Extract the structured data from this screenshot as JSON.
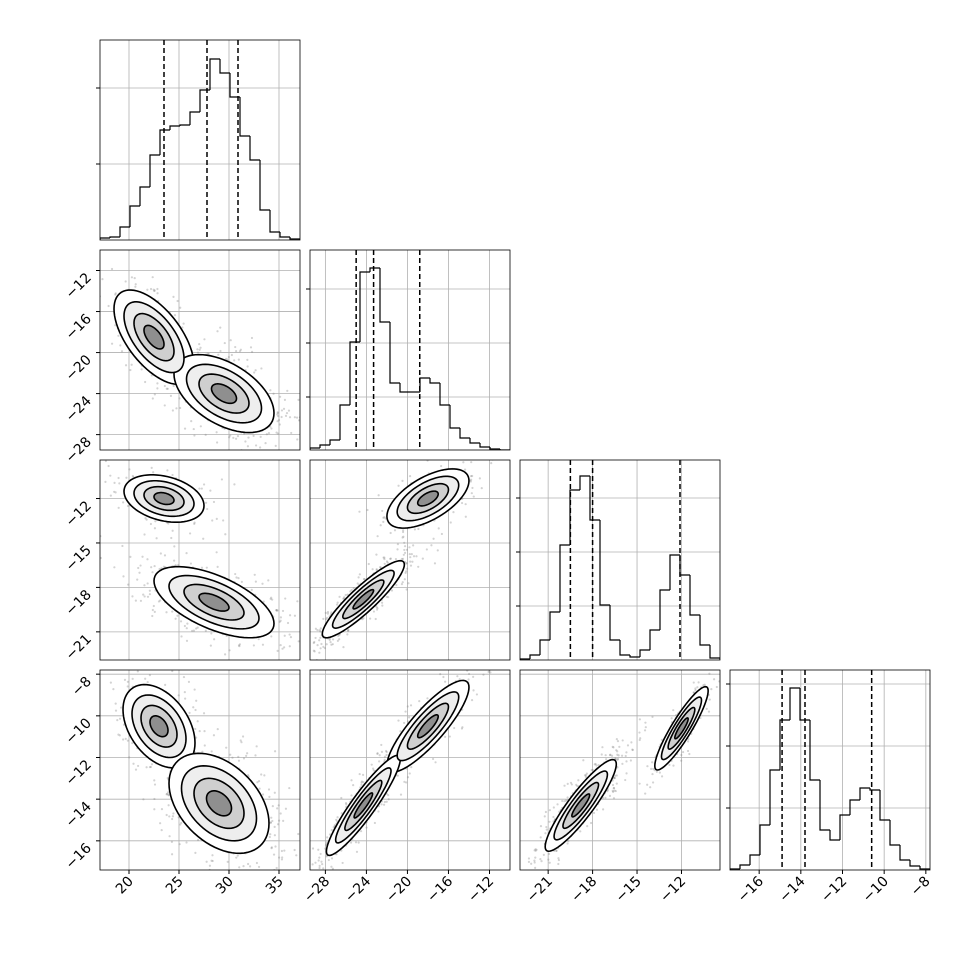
{
  "chart_data": {
    "type": "corner",
    "grid": true,
    "color": "#000000",
    "point_color": "#808080",
    "levels": [
      0.5,
      1,
      1.5,
      2
    ],
    "parameters": [
      {
        "lim": [
          17.1,
          37.1
        ],
        "ticks": [
          20,
          25,
          30,
          35
        ],
        "bins": [
          17.1,
          18.1,
          19.1,
          20.1,
          21.1,
          22.1,
          23.1,
          24.1,
          25.1,
          26.1,
          27.1,
          28.1,
          29.1,
          30.1,
          31.1,
          32.1,
          33.1,
          34.1,
          35.1,
          36.1,
          37.1
        ],
        "counts": [
          2,
          3,
          13,
          34,
          53,
          85,
          110,
          114,
          115,
          128,
          150,
          181,
          167,
          143,
          104,
          80,
          30,
          8,
          3,
          1
        ],
        "hist_ylim": [
          0,
          200
        ],
        "hist_yticks": [
          76,
          152
        ],
        "quantiles": [
          23.5,
          27.8,
          30.9
        ]
      },
      {
        "lim": [
          -29.5,
          -10.0
        ],
        "ticks": [
          {
            "value": -28,
            "label": "−28"
          },
          {
            "value": -24,
            "label": "−24"
          },
          {
            "value": -20,
            "label": "−20"
          },
          {
            "value": -16,
            "label": "−16"
          },
          {
            "value": -12,
            "label": "−12"
          }
        ],
        "bins": [
          -29.5,
          -28.525,
          -27.55,
          -26.575,
          -25.6,
          -24.625,
          -23.65,
          -22.675,
          -21.7,
          -20.725,
          -19.75,
          -18.775,
          -17.8,
          -16.825,
          -15.85,
          -14.875,
          -13.9,
          -12.925,
          -11.95,
          -10.975,
          -10.0
        ],
        "counts": [
          2,
          5,
          10,
          45,
          108,
          178,
          182,
          128,
          67,
          58,
          58,
          72,
          67,
          45,
          22,
          12,
          7,
          3,
          1,
          0
        ],
        "hist_ylim": [
          0,
          200
        ],
        "hist_yticks": [
          53,
          107,
          161
        ],
        "quantiles": [
          -25.0,
          -23.3,
          -18.8
        ]
      },
      {
        "lim": [
          -22.9,
          -9.4
        ],
        "ticks": [
          {
            "value": -21,
            "label": "−21"
          },
          {
            "value": -18,
            "label": "−18"
          },
          {
            "value": -15,
            "label": "−15"
          },
          {
            "value": -12,
            "label": "−12"
          }
        ],
        "bins": [
          -22.9,
          -22.225,
          -21.55,
          -20.875,
          -20.2,
          -19.525,
          -18.85,
          -18.175,
          -17.5,
          -16.825,
          -16.15,
          -15.475,
          -14.8,
          -14.125,
          -13.45,
          -12.775,
          -12.1,
          -11.425,
          -10.75,
          -10.075,
          -9.4
        ],
        "counts": [
          1,
          5,
          20,
          48,
          115,
          170,
          184,
          140,
          55,
          20,
          5,
          3,
          10,
          30,
          70,
          105,
          85,
          45,
          15,
          2
        ],
        "hist_ylim": [
          0,
          200
        ],
        "hist_yticks": [
          54,
          108,
          162
        ],
        "quantiles": [
          -19.5,
          -18.0,
          -12.1
        ]
      },
      {
        "lim": [
          -17.4,
          -7.8
        ],
        "ticks": [
          {
            "value": -16,
            "label": "−16"
          },
          {
            "value": -14,
            "label": "−14"
          },
          {
            "value": -12,
            "label": "−12"
          },
          {
            "value": -10,
            "label": "−10"
          },
          {
            "value": -8,
            "label": "−8"
          }
        ],
        "bins": [
          -17.4,
          -16.92,
          -16.44,
          -15.96,
          -15.48,
          -15.0,
          -14.52,
          -14.04,
          -13.56,
          -13.08,
          -12.6,
          -12.12,
          -11.64,
          -11.16,
          -10.68,
          -10.2,
          -9.72,
          -9.24,
          -8.76,
          -8.28,
          -7.8
        ],
        "counts": [
          1,
          5,
          15,
          45,
          100,
          150,
          182,
          150,
          90,
          40,
          30,
          55,
          70,
          82,
          80,
          50,
          25,
          10,
          4,
          1
        ],
        "hist_ylim": [
          0,
          200
        ],
        "hist_yticks": [
          62,
          124,
          186
        ],
        "quantiles": [
          -14.9,
          -13.8,
          -10.6
        ]
      }
    ],
    "pairs": [
      {
        "x": 0,
        "y": 1,
        "components": [
          {
            "center": [
              22.5,
              -18.5
            ],
            "sx": 2.0,
            "sy": 2.3,
            "rho": -0.6,
            "weight": 0.3
          },
          {
            "center": [
              29.5,
              -24.0
            ],
            "sx": 2.5,
            "sy": 1.9,
            "rho": -0.5,
            "weight": 0.7
          }
        ]
      },
      {
        "x": 0,
        "y": 2,
        "components": [
          {
            "center": [
              23.5,
              -12.0
            ],
            "sx": 2.0,
            "sy": 0.8,
            "rho": -0.3,
            "weight": 0.3
          },
          {
            "center": [
              28.5,
              -19.0
            ],
            "sx": 3.0,
            "sy": 1.2,
            "rho": -0.6,
            "weight": 0.7
          }
        ]
      },
      {
        "x": 0,
        "y": 3,
        "components": [
          {
            "center": [
              23.0,
              -10.5
            ],
            "sx": 1.8,
            "sy": 1.0,
            "rho": -0.4,
            "weight": 0.3
          },
          {
            "center": [
              29.0,
              -14.2
            ],
            "sx": 2.5,
            "sy": 1.2,
            "rho": -0.4,
            "weight": 0.7
          }
        ]
      },
      {
        "x": 1,
        "y": 2,
        "components": [
          {
            "center": [
              -18.0,
              -12.0
            ],
            "sx": 2.0,
            "sy": 1.0,
            "rho": 0.6,
            "weight": 0.3
          },
          {
            "center": [
              -24.3,
              -18.8
            ],
            "sx": 2.0,
            "sy": 1.3,
            "rho": 0.9,
            "weight": 0.7
          }
        ]
      },
      {
        "x": 1,
        "y": 3,
        "components": [
          {
            "center": [
              -18.0,
              -10.5
            ],
            "sx": 2.0,
            "sy": 1.1,
            "rho": 0.85,
            "weight": 0.3
          },
          {
            "center": [
              -24.3,
              -14.3
            ],
            "sx": 1.8,
            "sy": 1.2,
            "rho": 0.92,
            "weight": 0.7
          }
        ]
      },
      {
        "x": 2,
        "y": 3,
        "components": [
          {
            "center": [
              -12.0,
              -10.6
            ],
            "sx": 0.9,
            "sy": 1.0,
            "rho": 0.9,
            "weight": 0.3
          },
          {
            "center": [
              -18.8,
              -14.3
            ],
            "sx": 1.2,
            "sy": 1.1,
            "rho": 0.9,
            "weight": 0.7
          }
        ]
      }
    ]
  }
}
